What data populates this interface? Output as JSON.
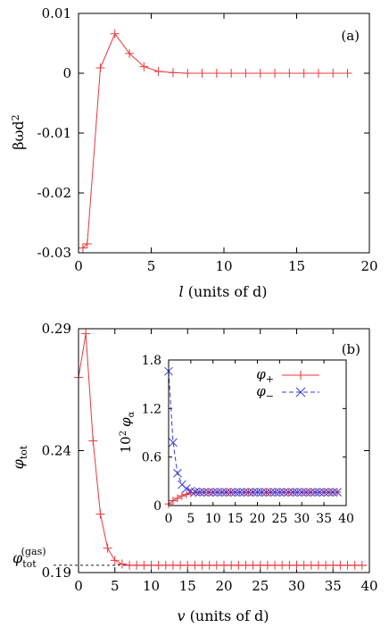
{
  "chart_data": [
    {
      "type": "line",
      "panel_label": "(a)",
      "xlabel_var": "l",
      "xlabel_rest": " (units of d)",
      "ylabel_main": "βωd",
      "ylabel_sup": "2",
      "xlim": [
        0,
        20
      ],
      "ylim": [
        -0.03,
        0.01
      ],
      "xticks": [
        0,
        5,
        10,
        15,
        20
      ],
      "yticks": [
        -0.03,
        -0.02,
        -0.01,
        0,
        0.01
      ],
      "ytick_labels": [
        "-0.03",
        "-0.02",
        "-0.01",
        "0",
        "0.01"
      ],
      "series": [
        {
          "color": "#e8383d",
          "marker": "plus",
          "x": [
            0.3,
            0.6,
            1.5,
            2.5,
            3.5,
            4.5,
            5.5,
            6.5,
            7.5,
            8.5,
            9.5,
            10.5,
            11.5,
            12.5,
            13.5,
            14.5,
            15.5,
            16.5,
            17.5,
            18.5
          ],
          "y": [
            -0.0292,
            -0.0285,
            0.0009,
            0.0066,
            0.0033,
            0.0011,
            0.0003,
            0.0001,
            0,
            0,
            0,
            0,
            0,
            0,
            0,
            0,
            0,
            0,
            0,
            0
          ]
        }
      ]
    },
    {
      "type": "line",
      "panel_label": "(b)",
      "xlabel_var": "v",
      "xlabel_rest": " (units of d)",
      "ylabel_main": "φ",
      "ylabel_sub": "tot",
      "ref_label_main": "φ",
      "ref_label_sub": "tot",
      "ref_label_sup": "(gas)",
      "ref_value": 0.193,
      "xlim": [
        0,
        40
      ],
      "ylim": [
        0.19,
        0.29
      ],
      "xticks": [
        0,
        5,
        10,
        15,
        20,
        25,
        30,
        35,
        40
      ],
      "yticks": [
        0.19,
        0.24,
        0.29
      ],
      "ytick_labels": [
        "0.19",
        "0.24",
        "0.29"
      ],
      "series": [
        {
          "color": "#e8383d",
          "marker": "plus",
          "x": [
            0,
            1,
            2,
            3,
            4,
            5,
            6,
            7,
            8,
            9,
            10,
            11,
            12,
            13,
            14,
            15,
            16,
            17,
            18,
            19,
            20,
            21,
            22,
            23,
            24,
            25,
            26,
            27,
            28,
            29,
            30,
            31,
            32,
            33,
            34,
            35,
            36,
            37,
            38,
            39
          ],
          "y": [
            0.27,
            0.288,
            0.244,
            0.214,
            0.2,
            0.195,
            0.1935,
            0.193,
            0.193,
            0.193,
            0.193,
            0.193,
            0.193,
            0.193,
            0.193,
            0.193,
            0.193,
            0.193,
            0.193,
            0.193,
            0.193,
            0.193,
            0.193,
            0.193,
            0.193,
            0.193,
            0.193,
            0.193,
            0.193,
            0.193,
            0.193,
            0.193,
            0.193,
            0.193,
            0.193,
            0.193,
            0.193,
            0.193,
            0.193,
            0.193
          ]
        }
      ]
    },
    {
      "type": "line",
      "role": "inset",
      "ylabel_main": "10",
      "ylabel_sup": "2",
      "ylabel_var": "φ",
      "ylabel_sub": "α",
      "xlim": [
        0,
        40
      ],
      "ylim": [
        0,
        1.8
      ],
      "xticks": [
        0,
        5,
        10,
        15,
        20,
        25,
        30,
        35,
        40
      ],
      "yticks": [
        0,
        0.6,
        1.2,
        1.8
      ],
      "ytick_labels": [
        "0",
        "0.6",
        "1.2",
        "1.8"
      ],
      "legend_position": "top-right",
      "series": [
        {
          "legend_main": "φ",
          "legend_sub": "+",
          "color": "#e8383d",
          "marker": "plus",
          "dash": "",
          "x": [
            0,
            1,
            2,
            3,
            4,
            5,
            6,
            7,
            8,
            9,
            10,
            11,
            12,
            13,
            14,
            15,
            16,
            17,
            18,
            19,
            20,
            21,
            22,
            23,
            24,
            25,
            26,
            27,
            28,
            29,
            30,
            31,
            32,
            33,
            34,
            35,
            36,
            37,
            38
          ],
          "y": [
            0.02,
            0.06,
            0.09,
            0.12,
            0.14,
            0.155,
            0.16,
            0.165,
            0.165,
            0.165,
            0.165,
            0.165,
            0.165,
            0.165,
            0.165,
            0.165,
            0.165,
            0.165,
            0.165,
            0.165,
            0.165,
            0.165,
            0.165,
            0.165,
            0.165,
            0.165,
            0.165,
            0.165,
            0.165,
            0.165,
            0.165,
            0.165,
            0.165,
            0.165,
            0.165,
            0.165,
            0.165,
            0.165,
            0.165
          ]
        },
        {
          "legend_main": "φ",
          "legend_sub": "−",
          "color": "#3b3bd6",
          "marker": "cross",
          "dash": "5,3",
          "x": [
            0,
            1,
            2,
            3,
            4,
            5,
            6,
            7,
            8,
            9,
            10,
            11,
            12,
            13,
            14,
            15,
            16,
            17,
            18,
            19,
            20,
            21,
            22,
            23,
            24,
            25,
            26,
            27,
            28,
            29,
            30,
            31,
            32,
            33,
            34,
            35,
            36,
            37,
            38
          ],
          "y": [
            1.66,
            0.78,
            0.4,
            0.26,
            0.21,
            0.18,
            0.17,
            0.165,
            0.165,
            0.165,
            0.165,
            0.165,
            0.165,
            0.165,
            0.165,
            0.165,
            0.165,
            0.165,
            0.165,
            0.165,
            0.165,
            0.165,
            0.165,
            0.165,
            0.165,
            0.165,
            0.165,
            0.165,
            0.165,
            0.165,
            0.165,
            0.165,
            0.165,
            0.165,
            0.165,
            0.165,
            0.165,
            0.165,
            0.165
          ]
        }
      ]
    }
  ]
}
